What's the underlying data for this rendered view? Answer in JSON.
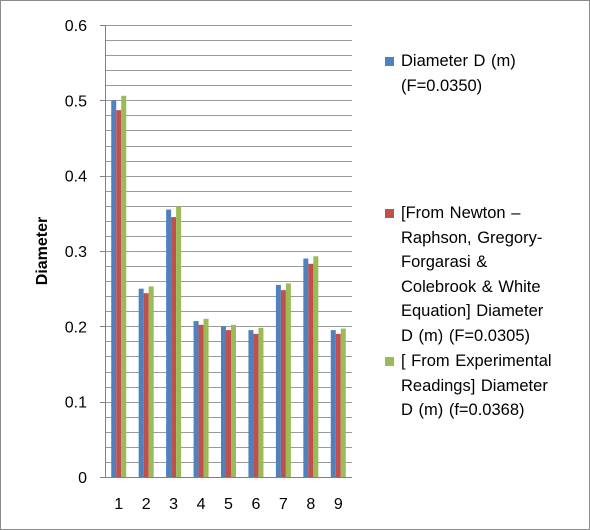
{
  "chart_data": {
    "type": "bar",
    "title": "",
    "xlabel": "",
    "ylabel": "Diameter",
    "categories": [
      "1",
      "2",
      "3",
      "4",
      "5",
      "6",
      "7",
      "8",
      "9"
    ],
    "ylim": [
      0,
      0.6
    ],
    "yticks": [
      "0",
      "0.1",
      "0.2",
      "0.3",
      "0.4",
      "0.5",
      "0.6"
    ],
    "grid": true,
    "legend_position": "right",
    "series": [
      {
        "name": "Diameter D (m)\n(F=0.0350)",
        "color": "#4F81BD",
        "values": [
          0.5,
          0.25,
          0.355,
          0.207,
          0.2,
          0.195,
          0.255,
          0.29,
          0.195
        ]
      },
      {
        "name": "[From Newton –\nRaphson, Gregory-\nForgarasi  &\nColebrook & White\nEquation] Diameter\nD (m) (F=0.0305)",
        "color": "#C0504D",
        "values": [
          0.487,
          0.244,
          0.345,
          0.202,
          0.195,
          0.19,
          0.248,
          0.283,
          0.19
        ]
      },
      {
        "name": "[ From Experimental\nReadings] Diameter\nD (m) (f=0.0368)",
        "color": "#9BBB59",
        "values": [
          0.506,
          0.253,
          0.359,
          0.21,
          0.202,
          0.198,
          0.257,
          0.293,
          0.197
        ]
      }
    ]
  }
}
